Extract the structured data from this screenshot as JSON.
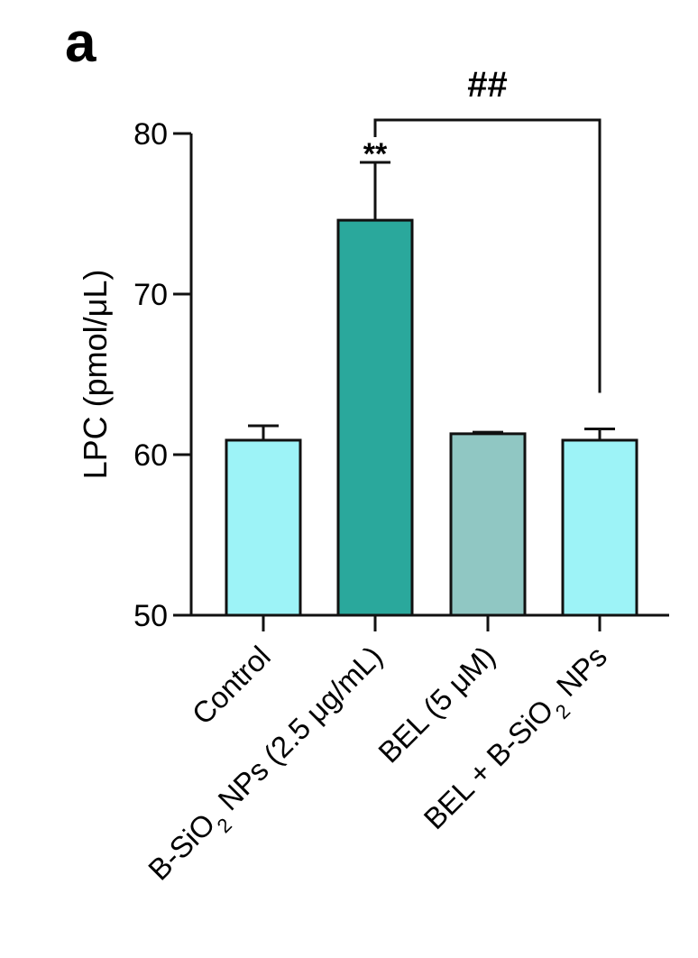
{
  "panel_label": "a",
  "chart_data": {
    "type": "bar",
    "title": "",
    "xlabel": "",
    "ylabel": "LPC (pmol/μL)",
    "ylim": [
      50,
      80
    ],
    "yticks": [
      50,
      60,
      70,
      80
    ],
    "grid": false,
    "categories": [
      {
        "parts": [
          {
            "t": "Control"
          }
        ]
      },
      {
        "parts": [
          {
            "t": "B-SiO"
          },
          {
            "t": "2",
            "sub": true
          },
          {
            "t": " NPs (2.5 μg/mL)"
          }
        ]
      },
      {
        "parts": [
          {
            "t": "BEL (5 μM)"
          }
        ]
      },
      {
        "parts": [
          {
            "t": "BEL + B-SiO"
          },
          {
            "t": "2",
            "sub": true
          },
          {
            "t": " NPs"
          }
        ]
      }
    ],
    "values": [
      60.9,
      74.6,
      61.3,
      60.9
    ],
    "errors": [
      0.9,
      3.6,
      0.1,
      0.7
    ],
    "bar_colors": [
      "#9df3f7",
      "#2aa89c",
      "#90c7c3",
      "#9df3f7"
    ],
    "significance": [
      {
        "bar_index": 1,
        "label": "**"
      }
    ],
    "comparisons": [
      {
        "from": 1,
        "to": 3,
        "label": "##"
      }
    ]
  }
}
